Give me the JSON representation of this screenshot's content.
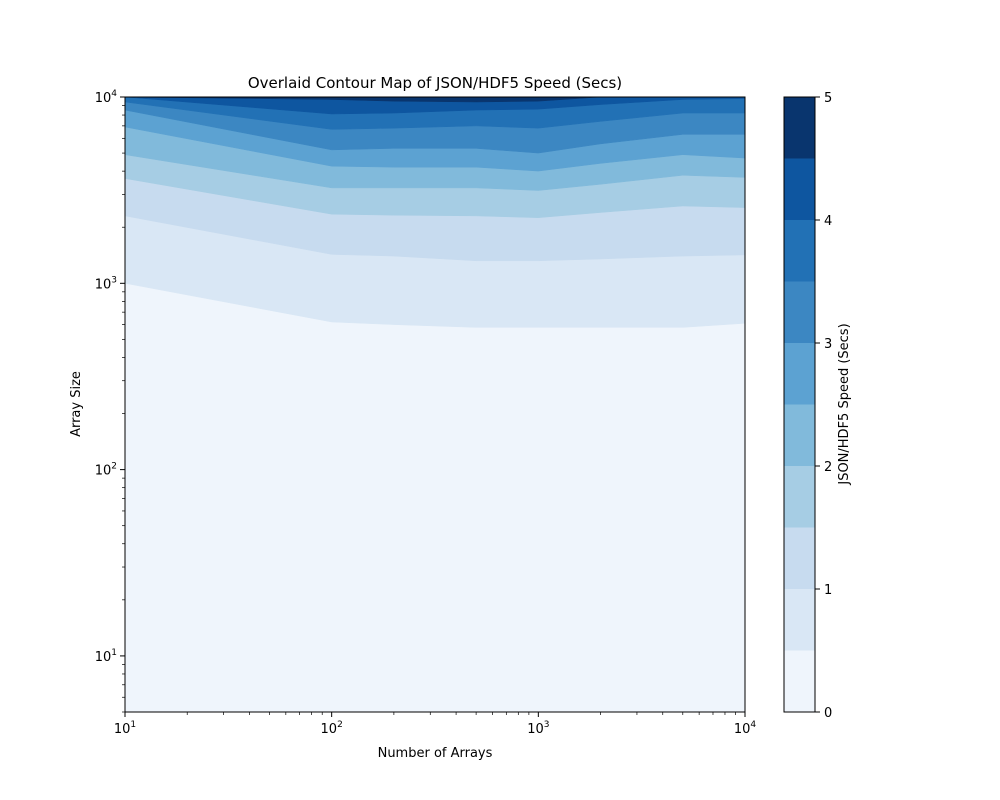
{
  "chart_data": {
    "type": "contour",
    "title": "Overlaid Contour Map of JSON/HDF5 Speed (Secs)",
    "xlabel": "Number of Arrays",
    "ylabel": "Array Size",
    "x_scale": "log",
    "y_scale": "log",
    "xlim": [
      10,
      10000
    ],
    "ylim": [
      5,
      10000
    ],
    "x_ticks": [
      {
        "base": "10",
        "exp": "1",
        "value": 10
      },
      {
        "base": "10",
        "exp": "2",
        "value": 100
      },
      {
        "base": "10",
        "exp": "3",
        "value": 1000
      },
      {
        "base": "10",
        "exp": "4",
        "value": 10000
      }
    ],
    "y_ticks": [
      {
        "base": "10",
        "exp": "1",
        "value": 10
      },
      {
        "base": "10",
        "exp": "2",
        "value": 100
      },
      {
        "base": "10",
        "exp": "3",
        "value": 1000
      },
      {
        "base": "10",
        "exp": "4",
        "value": 10000
      }
    ],
    "contour_x": [
      10,
      100,
      200,
      500,
      1000,
      2000,
      5000,
      10000
    ],
    "contour_levels": [
      0,
      0.5,
      1,
      1.5,
      2,
      2.5,
      3,
      3.5,
      4,
      4.5,
      5
    ],
    "contour_lines": [
      {
        "level": 0.5,
        "y": [
          1000,
          620,
          600,
          580,
          580,
          580,
          580,
          610
        ]
      },
      {
        "level": 1.0,
        "y": [
          2300,
          1430,
          1400,
          1320,
          1320,
          1350,
          1400,
          1420
        ]
      },
      {
        "level": 1.5,
        "y": [
          3650,
          2350,
          2320,
          2300,
          2250,
          2400,
          2600,
          2550
        ]
      },
      {
        "level": 2.0,
        "y": [
          4900,
          3250,
          3250,
          3250,
          3150,
          3400,
          3800,
          3700
        ]
      },
      {
        "level": 2.5,
        "y": [
          6900,
          4250,
          4200,
          4200,
          4000,
          4400,
          4900,
          4700
        ]
      },
      {
        "level": 3.0,
        "y": [
          8500,
          5200,
          5300,
          5300,
          5000,
          5600,
          6300,
          6300
        ]
      },
      {
        "level": 3.5,
        "y": [
          9400,
          6700,
          6800,
          7000,
          6800,
          7400,
          8200,
          8200
        ]
      },
      {
        "level": 4.0,
        "y": [
          10000,
          8100,
          8200,
          8500,
          8600,
          9100,
          9700,
          9800
        ]
      },
      {
        "level": 4.5,
        "y": [
          10000,
          9700,
          9500,
          9400,
          9500,
          10000,
          10000,
          10000
        ]
      }
    ],
    "fill_colors": [
      "#eff5fc",
      "#d9e7f5",
      "#c7dbef",
      "#a6cde4",
      "#81badb",
      "#5ca2d2",
      "#3c87c2",
      "#2271b5",
      "#0e56a0",
      "#09356e"
    ],
    "colorbar": {
      "label": "JSON/HDF5 Speed (Secs)",
      "range": [
        0,
        5
      ],
      "tick_labels": [
        "0",
        "1",
        "2",
        "3",
        "4",
        "5"
      ],
      "tick_values": [
        0,
        1,
        2,
        3,
        4,
        5
      ]
    },
    "grid": false,
    "legend": "none"
  }
}
